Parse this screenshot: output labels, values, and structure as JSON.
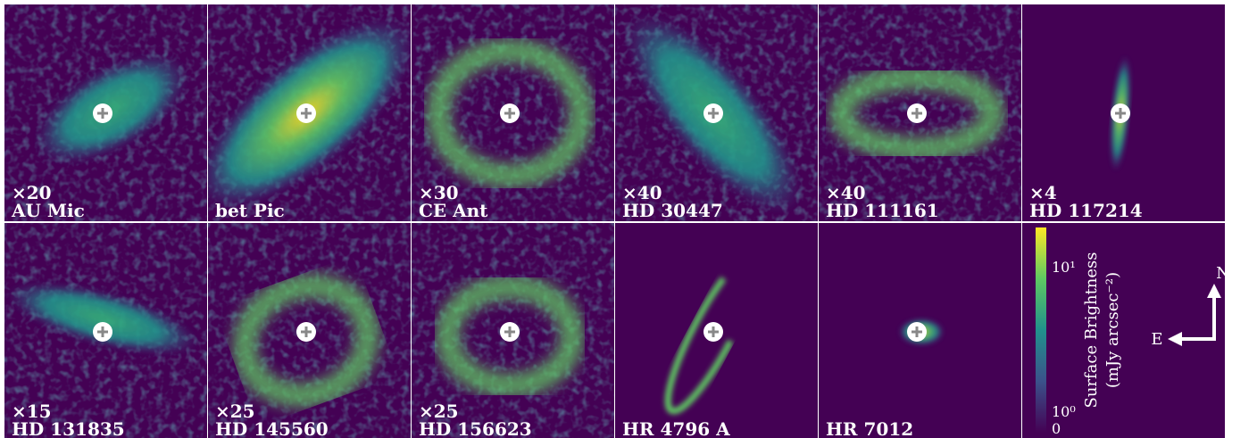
{
  "panels": [
    {
      "multiplier": "×20",
      "name": "AU Mic"
    },
    {
      "name": "bet Pic"
    },
    {
      "multiplier": "×30",
      "name": "CE Ant"
    },
    {
      "multiplier": "×40",
      "name": "HD 30447"
    },
    {
      "multiplier": "×40",
      "name": "HD 111161"
    },
    {
      "multiplier": "×4",
      "name": "HD 117214"
    },
    {
      "multiplier": "×15",
      "name": "HD 131835"
    },
    {
      "multiplier": "×25",
      "name": "HD 145560"
    },
    {
      "multiplier": "×25",
      "name": "HD 156623"
    },
    {
      "name": "HR 4796 A"
    },
    {
      "name": "HR 7012"
    }
  ],
  "colorbar": {
    "label": [
      "Surface Brightness",
      "(mJy arcsec⁻²)"
    ],
    "ticks": [
      "10¹",
      "10⁰",
      "0"
    ]
  },
  "compass": {
    "north": "N",
    "east": "E"
  }
}
